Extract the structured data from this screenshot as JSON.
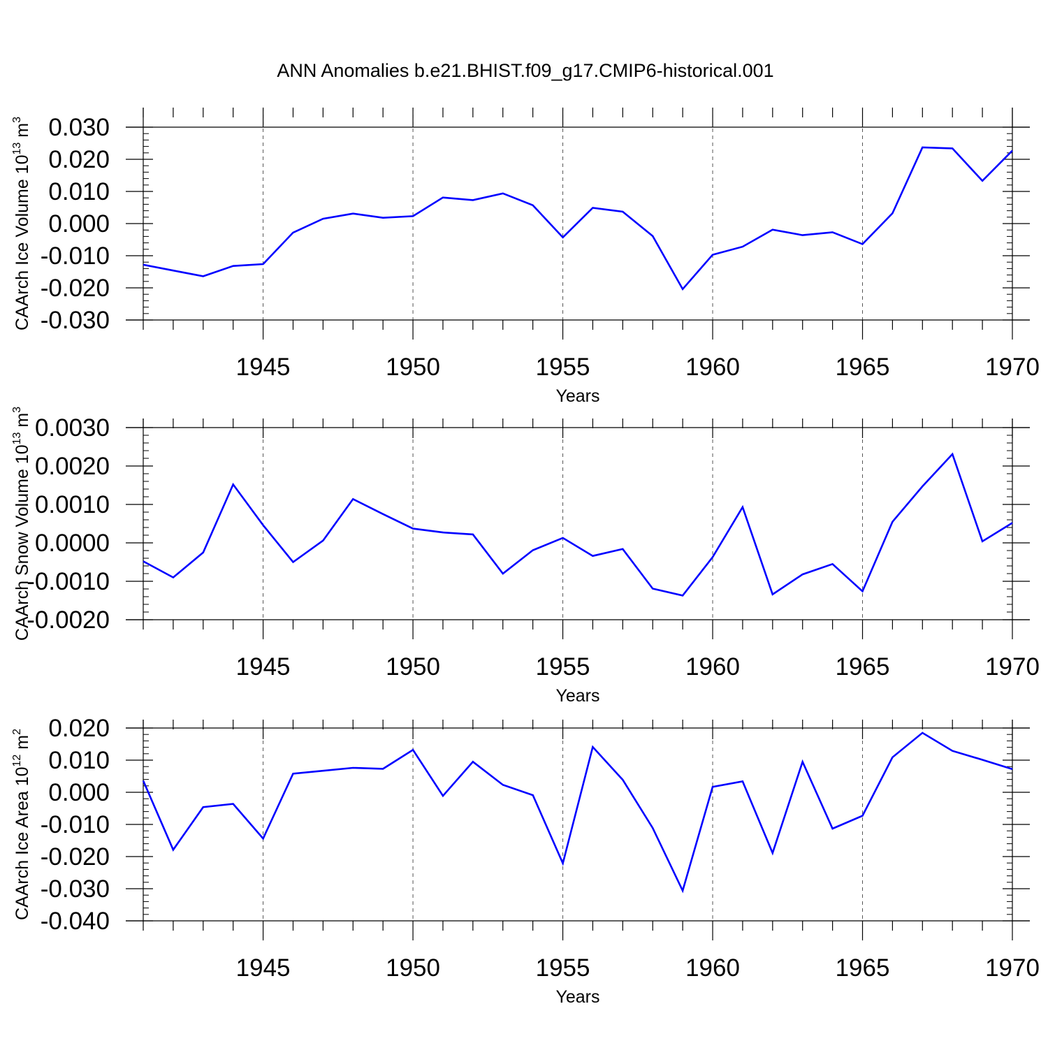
{
  "title": "ANN Anomalies b.e21.BHIST.f09_g17.CMIP6-historical.001",
  "line_color": "#0000ff",
  "grid_color": "#555555",
  "chart_data": [
    {
      "type": "line",
      "ylabel": {
        "text": "CAArch Ice Volume 10",
        "sup": "13",
        "unit": " m",
        "unit_sup": "3"
      },
      "xlabel": "Years",
      "xlim": [
        1941,
        1970
      ],
      "ylim": [
        -0.03,
        0.03
      ],
      "yticks": [
        "-0.030",
        "-0.020",
        "-0.010",
        "0.000",
        "0.010",
        "0.020",
        "0.030"
      ],
      "yminor": 0.002,
      "xticks": [
        "1945",
        "1950",
        "1955",
        "1960",
        "1965",
        "1970"
      ],
      "grid": "x-major dashed",
      "x": [
        1941,
        1942,
        1943,
        1944,
        1945,
        1946,
        1947,
        1948,
        1949,
        1950,
        1951,
        1952,
        1953,
        1954,
        1955,
        1956,
        1957,
        1958,
        1959,
        1960,
        1961,
        1962,
        1963,
        1964,
        1965,
        1966,
        1967,
        1968,
        1969,
        1970
      ],
      "values": [
        -0.0128,
        -0.0146,
        -0.0164,
        -0.0132,
        -0.0126,
        -0.0028,
        0.0015,
        0.0031,
        0.0018,
        0.0023,
        0.0081,
        0.0073,
        0.0094,
        0.0057,
        -0.0043,
        0.0049,
        0.0037,
        -0.0039,
        -0.0204,
        -0.0097,
        -0.0072,
        -0.0019,
        -0.0036,
        -0.0027,
        -0.0064,
        0.0032,
        0.0237,
        0.0234,
        0.0133,
        0.0227
      ]
    },
    {
      "type": "line",
      "ylabel": {
        "text": "CAArch Snow Volume 10",
        "sup": "13",
        "unit": " m",
        "unit_sup": "3"
      },
      "xlabel": "Years",
      "xlim": [
        1941,
        1970
      ],
      "ylim": [
        -0.002,
        0.003
      ],
      "yticks": [
        "-0.0020",
        "-0.0010",
        "0.0000",
        "0.0010",
        "0.0020",
        "0.0030"
      ],
      "yminor": 0.0002,
      "xticks": [
        "1945",
        "1950",
        "1955",
        "1960",
        "1965",
        "1970"
      ],
      "grid": "x-major dashed",
      "x": [
        1941,
        1942,
        1943,
        1944,
        1945,
        1946,
        1947,
        1948,
        1949,
        1950,
        1951,
        1952,
        1953,
        1954,
        1955,
        1956,
        1957,
        1958,
        1959,
        1960,
        1961,
        1962,
        1963,
        1964,
        1965,
        1966,
        1967,
        1968,
        1969,
        1970
      ],
      "values": [
        -0.00048,
        -0.0009,
        -0.00025,
        0.00152,
        0.00046,
        -0.0005,
        6e-05,
        0.00114,
        0.00075,
        0.00037,
        0.00027,
        0.00022,
        -0.0008,
        -0.00019,
        0.00013,
        -0.00034,
        -0.00016,
        -0.00119,
        -0.00137,
        -0.00037,
        0.00093,
        -0.00134,
        -0.00082,
        -0.00055,
        -0.00126,
        0.00055,
        0.00147,
        0.00231,
        4e-05,
        0.00052
      ]
    },
    {
      "type": "line",
      "ylabel": {
        "text": "CAArch Ice Area 10",
        "sup": "12",
        "unit": " m",
        "unit_sup": "2"
      },
      "xlabel": "Years",
      "xlim": [
        1941,
        1970
      ],
      "ylim": [
        -0.04,
        0.02
      ],
      "yticks": [
        "-0.040",
        "-0.030",
        "-0.020",
        "-0.010",
        "0.000",
        "0.010",
        "0.020"
      ],
      "yminor": 0.002,
      "xticks": [
        "1945",
        "1950",
        "1955",
        "1960",
        "1965",
        "1970"
      ],
      "grid": "x-major dashed",
      "x": [
        1941,
        1942,
        1943,
        1944,
        1945,
        1946,
        1947,
        1948,
        1949,
        1950,
        1951,
        1952,
        1953,
        1954,
        1955,
        1956,
        1957,
        1958,
        1959,
        1960,
        1961,
        1962,
        1963,
        1964,
        1965,
        1966,
        1967,
        1968,
        1969,
        1970
      ],
      "values": [
        0.0036,
        -0.0179,
        -0.0046,
        -0.0036,
        -0.0144,
        0.0058,
        0.0067,
        0.0076,
        0.0073,
        0.0132,
        -0.0011,
        0.0095,
        0.0023,
        -0.0009,
        -0.0221,
        0.0141,
        0.0039,
        -0.0111,
        -0.0306,
        0.0017,
        0.0034,
        -0.0189,
        0.0095,
        -0.0113,
        -0.0073,
        0.0109,
        0.0185,
        0.0129,
        0.0101,
        0.0072
      ]
    }
  ]
}
